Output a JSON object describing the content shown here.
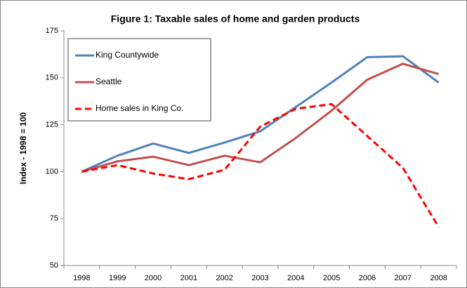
{
  "chart_data": {
    "type": "line",
    "title": "Figure 1: Taxable sales of home and garden products",
    "y_label": "Index - 1998 = 100",
    "categories": [
      "1998",
      "1999",
      "2000",
      "2001",
      "2002",
      "2003",
      "2004",
      "2005",
      "2006",
      "2007",
      "2008"
    ],
    "series": [
      {
        "name": "King Countywide",
        "color": "#4f81bd",
        "dash": false,
        "values": [
          100,
          108.5,
          115,
          110,
          115.5,
          121.5,
          134.5,
          147.5,
          161,
          161.5,
          147.5
        ]
      },
      {
        "name": "Seattle",
        "color": "#c0504d",
        "dash": false,
        "values": [
          100,
          105.5,
          108,
          103.5,
          108.5,
          105,
          118,
          132.5,
          149,
          157.5,
          152
        ]
      },
      {
        "name": "Home sales in King Co.",
        "color": "#ff0000",
        "dash": true,
        "values": [
          100,
          103.5,
          99,
          96,
          101,
          124,
          133.5,
          136,
          119,
          102,
          70.5
        ]
      }
    ],
    "ylim": [
      50,
      175
    ],
    "yticks": [
      50,
      75,
      100,
      125,
      150,
      175
    ],
    "grid": false
  }
}
